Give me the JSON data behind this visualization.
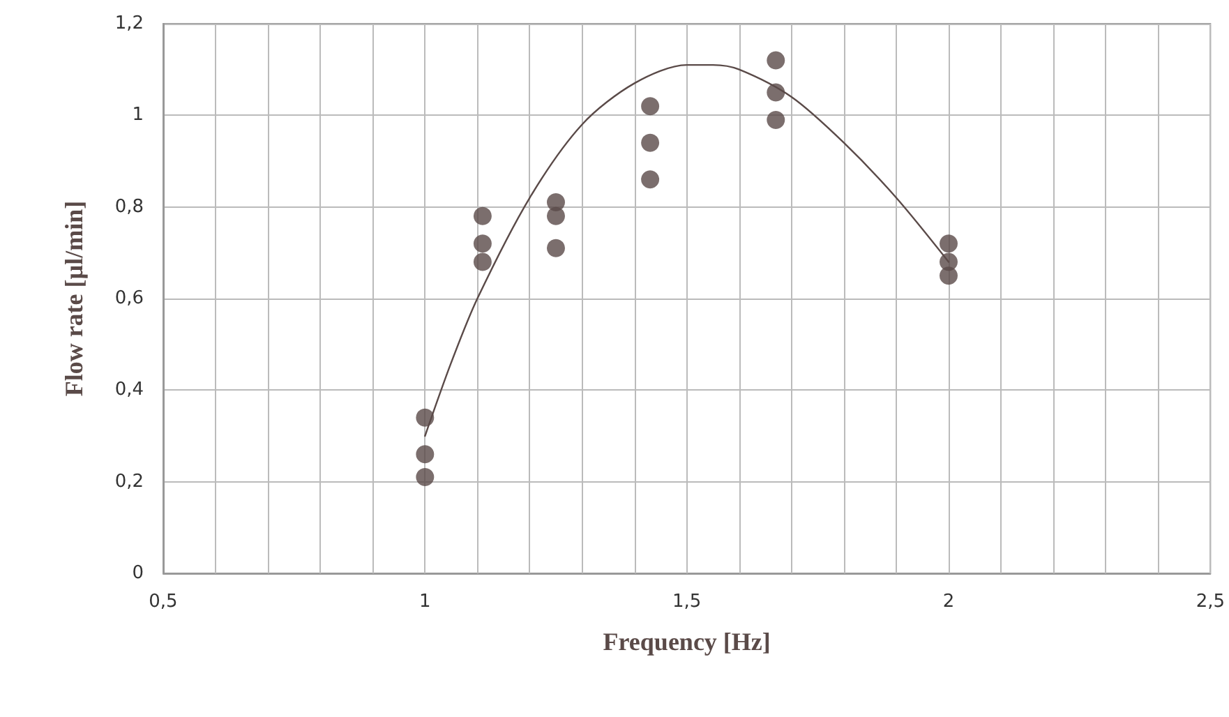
{
  "chart_data": {
    "type": "scatter",
    "xlabel": "Frequency [Hz]",
    "ylabel": "Flow rate [µl/min]",
    "xlim": [
      0.5,
      2.5
    ],
    "xticks": [
      {
        "value": 0.5,
        "label": "0,5"
      },
      {
        "value": 0.6,
        "label": null
      },
      {
        "value": 0.7,
        "label": null
      },
      {
        "value": 0.8,
        "label": null
      },
      {
        "value": 0.9,
        "label": null
      },
      1,
      {
        "value": 1.1,
        "label": null
      },
      {
        "value": 1.2,
        "label": null
      },
      {
        "value": 1.3,
        "label": null
      },
      {
        "value": 1.4,
        "label": null
      },
      {
        "value": 1.5,
        "label": "1,5"
      },
      {
        "value": 1.6,
        "label": null
      },
      {
        "value": 1.7,
        "label": null
      },
      {
        "value": 1.8,
        "label": null
      },
      {
        "value": 1.9,
        "label": null
      },
      2,
      {
        "value": 2.1,
        "label": null
      },
      {
        "value": 2.2,
        "label": null
      },
      {
        "value": 2.3,
        "label": null
      },
      {
        "value": 2.4,
        "label": null
      },
      {
        "value": 2.5,
        "label": "2,5"
      }
    ],
    "ylim": [
      0,
      1.2
    ],
    "yticks": [
      0,
      {
        "value": 0.2,
        "label": "0,2"
      },
      {
        "value": 0.4,
        "label": "0,4"
      },
      {
        "value": 0.6,
        "label": "0,6"
      },
      {
        "value": 0.8,
        "label": "0,8"
      },
      1,
      {
        "value": 1.2,
        "label": "1,2"
      }
    ],
    "grid": true,
    "marker": "circle",
    "series": [
      {
        "type": "scatter",
        "color": "#5a4a48",
        "x": [
          1.0,
          1.0,
          1.0,
          1.11,
          1.11,
          1.11,
          1.25,
          1.25,
          1.25,
          1.43,
          1.43,
          1.43,
          1.67,
          1.67,
          1.67,
          2.0,
          2.0,
          2.0
        ],
        "values": [
          0.34,
          0.26,
          0.21,
          0.78,
          0.72,
          0.68,
          0.81,
          0.78,
          0.71,
          1.02,
          0.94,
          0.86,
          1.12,
          1.05,
          0.99,
          0.72,
          0.68,
          0.65
        ]
      },
      {
        "type": "line",
        "color": "#5a4a48",
        "marker": "none",
        "line_style": "solid",
        "x": [
          1.0,
          1.05,
          1.1,
          1.2,
          1.3,
          1.4,
          1.5,
          1.55,
          1.6,
          1.7,
          1.8,
          1.9,
          2.0
        ],
        "values": [
          0.3,
          0.46,
          0.6,
          0.82,
          0.98,
          1.07,
          1.11,
          1.11,
          1.1,
          1.04,
          0.94,
          0.82,
          0.68
        ]
      }
    ]
  }
}
